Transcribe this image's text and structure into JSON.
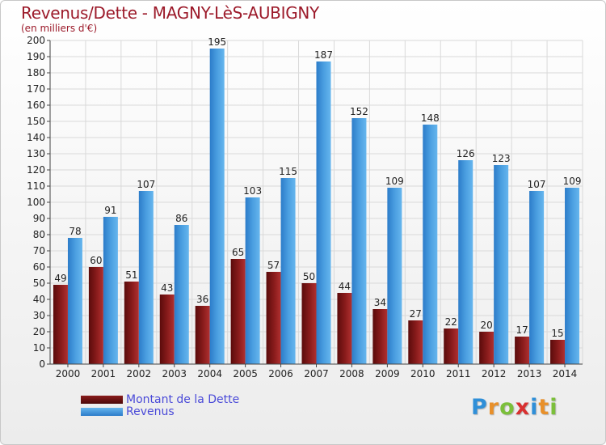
{
  "header": {
    "title": "Revenus/Dette - MAGNY-LèS-AUBIGNY",
    "subtitle": "(en milliers d'€)"
  },
  "colors": {
    "title": "#9c1a2a",
    "debt_dark": "#5a0b0b",
    "debt_light": "#b03030",
    "revenue_dark": "#2c7cc9",
    "revenue_light": "#66b6ee",
    "legend_text": "#4a4ad8"
  },
  "chart_data": {
    "type": "bar",
    "categories": [
      "2000",
      "2001",
      "2002",
      "2003",
      "2004",
      "2005",
      "2006",
      "2007",
      "2008",
      "2009",
      "2010",
      "2011",
      "2012",
      "2013",
      "2014"
    ],
    "series": [
      {
        "name": "Montant de la Dette",
        "values": [
          49,
          60,
          51,
          43,
          36,
          65,
          57,
          50,
          44,
          34,
          27,
          22,
          20,
          17,
          15
        ]
      },
      {
        "name": "Revenus",
        "values": [
          78,
          91,
          107,
          86,
          195,
          103,
          115,
          187,
          152,
          109,
          148,
          126,
          123,
          107,
          109
        ]
      }
    ],
    "ylim": [
      0,
      200
    ],
    "ytick_step": 10,
    "grid": true,
    "title": "Revenus/Dette - MAGNY-LèS-AUBIGNY",
    "ylabel": "(en milliers d'€)",
    "xlabel": "",
    "legend": "bottom-left"
  },
  "legend": {
    "items": [
      "Montant de la Dette",
      "Revenus"
    ]
  },
  "logo": {
    "letters": [
      "P",
      "r",
      "o",
      "x",
      "i",
      "t",
      "i"
    ],
    "colors": [
      "#2f8fd8",
      "#e8902a",
      "#7bbf3a",
      "#d83030",
      "#2f8fd8",
      "#e8902a",
      "#7bbf3a"
    ]
  }
}
